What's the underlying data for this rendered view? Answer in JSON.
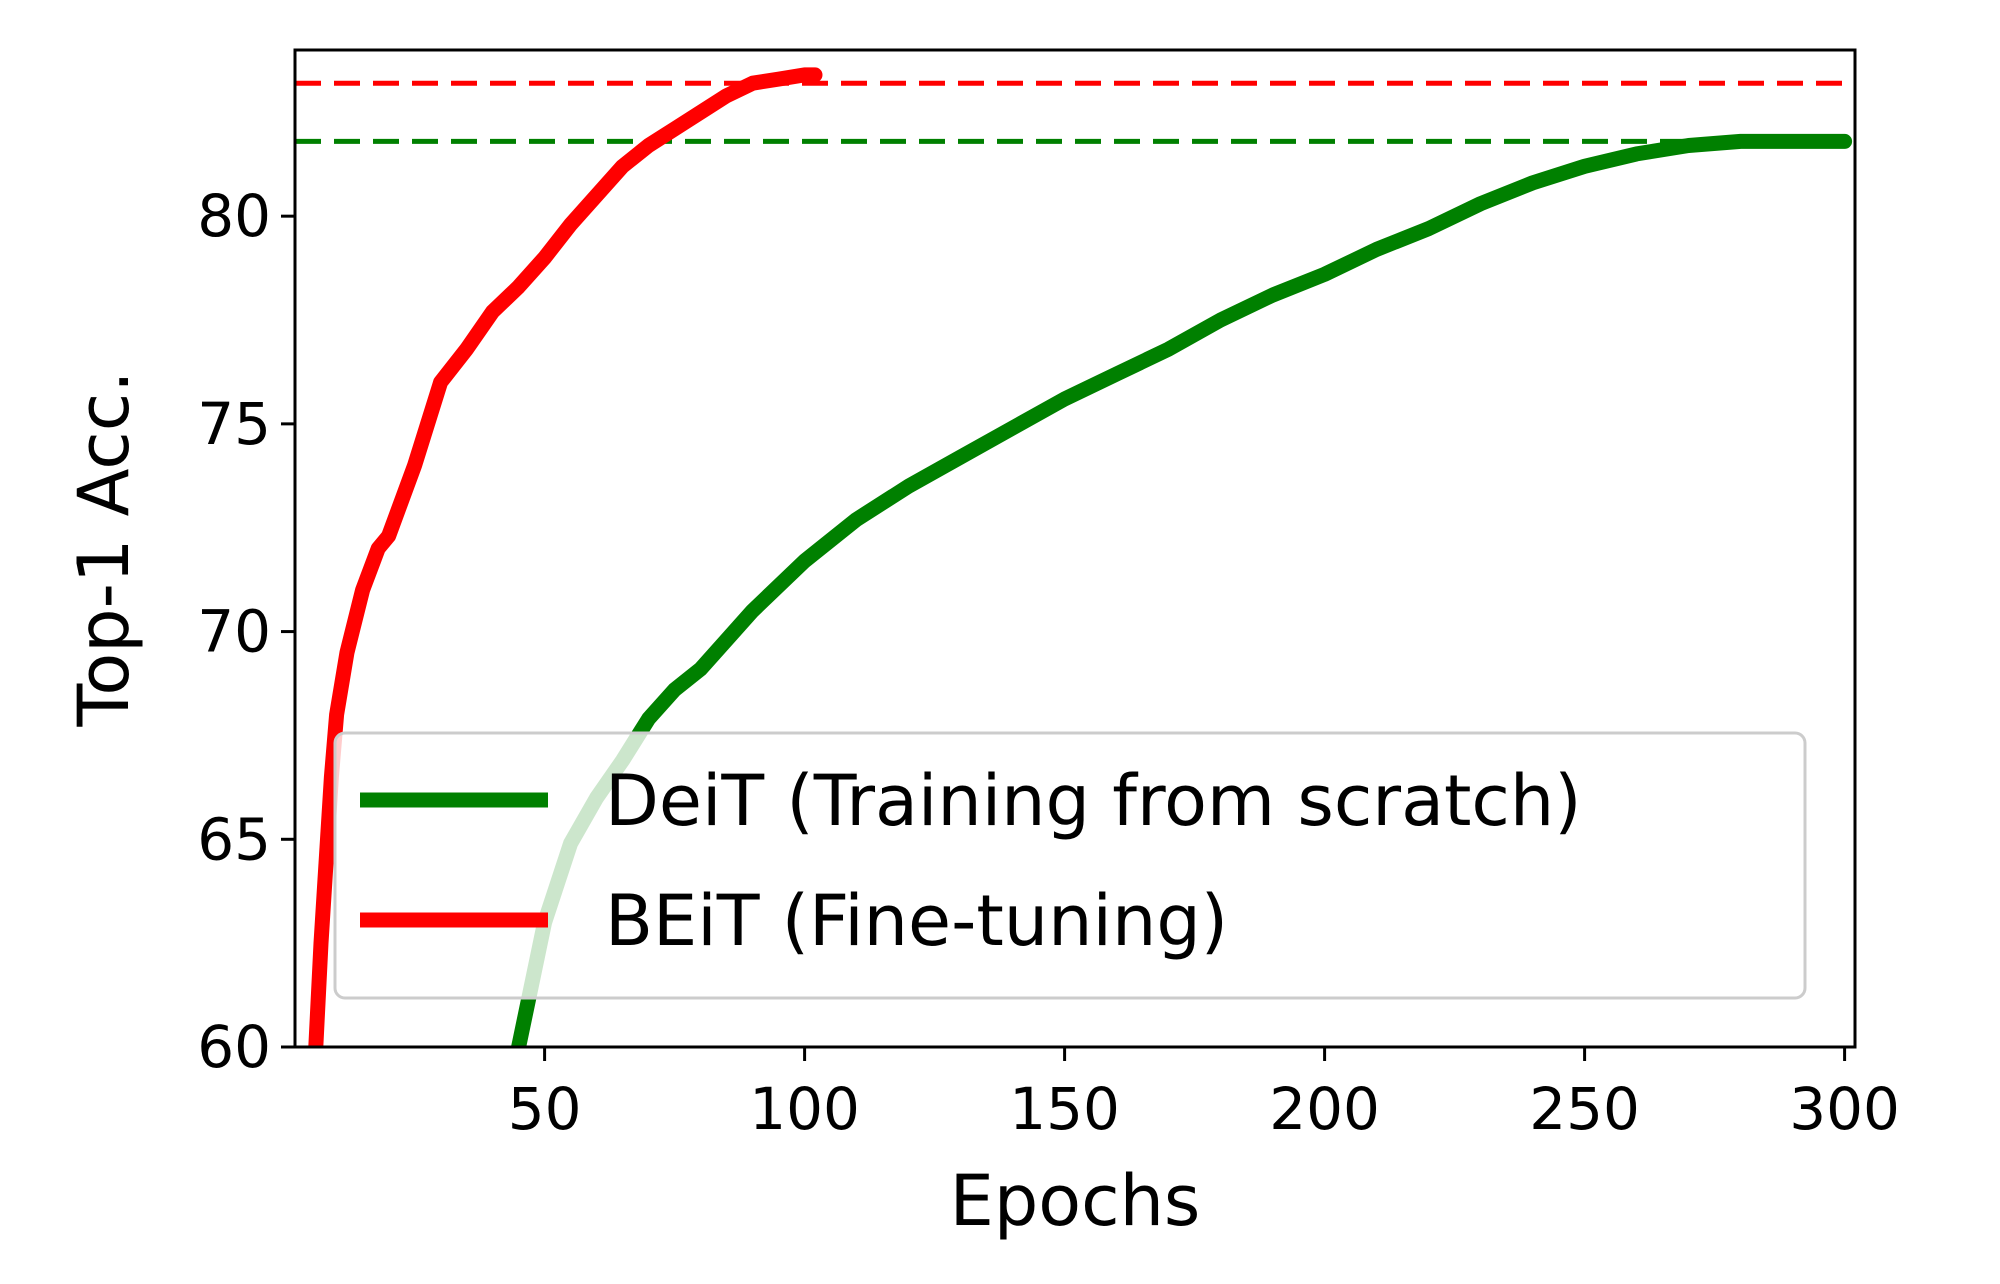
{
  "chart_data": {
    "type": "line",
    "xlabel": "Epochs",
    "ylabel": "Top-1 Acc.",
    "xlim": [
      2,
      302
    ],
    "ylim": [
      60,
      84
    ],
    "xticks": [
      50,
      100,
      150,
      200,
      250,
      300
    ],
    "yticks": [
      60,
      65,
      70,
      75,
      80
    ],
    "legend_position": "lower-right",
    "series": [
      {
        "name": "DeiT (Training from scratch)",
        "color": "#008000",
        "x": [
          45,
          50,
          55,
          60,
          65,
          70,
          75,
          80,
          90,
          100,
          110,
          120,
          130,
          140,
          150,
          160,
          170,
          180,
          190,
          200,
          210,
          220,
          230,
          240,
          250,
          260,
          270,
          280,
          290,
          300
        ],
        "y": [
          60.0,
          63.0,
          64.9,
          66.0,
          66.9,
          67.9,
          68.6,
          69.1,
          70.5,
          71.7,
          72.7,
          73.5,
          74.2,
          74.9,
          75.6,
          76.2,
          76.8,
          77.5,
          78.1,
          78.6,
          79.2,
          79.7,
          80.3,
          80.8,
          81.2,
          81.5,
          81.7,
          81.8,
          81.8,
          81.8
        ]
      },
      {
        "name": "BEiT (Fine-tuning)",
        "color": "#ff0000",
        "x": [
          6,
          7,
          8,
          9,
          10,
          12,
          15,
          18,
          20,
          25,
          30,
          35,
          40,
          45,
          50,
          55,
          60,
          65,
          70,
          75,
          80,
          85,
          90,
          95,
          100,
          102
        ],
        "y": [
          60.0,
          62.5,
          64.5,
          66.5,
          68.0,
          69.5,
          71.0,
          72.0,
          72.3,
          74.0,
          76.0,
          76.8,
          77.7,
          78.3,
          79.0,
          79.8,
          80.5,
          81.2,
          81.7,
          82.1,
          82.5,
          82.9,
          83.2,
          83.3,
          83.4,
          83.4
        ]
      }
    ],
    "reference_lines": [
      {
        "y": 81.8,
        "color": "#008000",
        "style": "dashed"
      },
      {
        "y": 83.2,
        "color": "#ff0000",
        "style": "dashed"
      }
    ]
  }
}
